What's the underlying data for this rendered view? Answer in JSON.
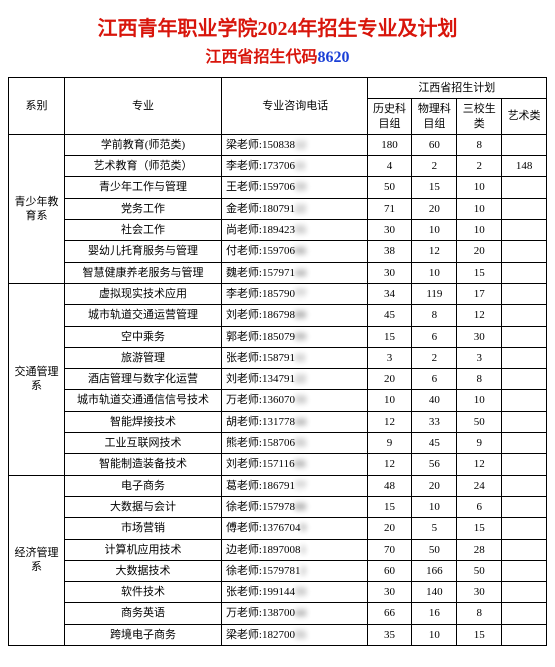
{
  "title": {
    "text": "江西青年职业学院2024年招生专业及计划",
    "color": "#d8150b",
    "fontsize": "20px"
  },
  "subtitle": {
    "prefix": "江西省招生代码",
    "code": "8620",
    "prefix_color": "#d8150b",
    "code_color": "#1a3fd6",
    "fontsize": "16px"
  },
  "header": {
    "dept": "系别",
    "major": "专业",
    "phone": "专业咨询电话",
    "plan_group": "江西省招生计划",
    "hist": "历史科目组",
    "phys": "物理科目组",
    "sanx": "三校生类",
    "art": "艺术类"
  },
  "departments": [
    {
      "name": "青少年教育系",
      "rows": [
        {
          "major": "学前教育(师范类)",
          "teacher": "梁老师:",
          "ph_a": "150838",
          "ph_b": "12",
          "hist": "180",
          "phys": "60",
          "sanx": "8",
          "art": ""
        },
        {
          "major": "艺术教育（师范类）",
          "teacher": "李老师:",
          "ph_a": "173706",
          "ph_b": "11",
          "hist": "4",
          "phys": "2",
          "sanx": "2",
          "art": "148"
        },
        {
          "major": "青少年工作与管理",
          "teacher": "王老师:",
          "ph_a": "159706",
          "ph_b": "33",
          "hist": "50",
          "phys": "15",
          "sanx": "10",
          "art": ""
        },
        {
          "major": "党务工作",
          "teacher": "金老师:",
          "ph_a": "180791",
          "ph_b": "22",
          "hist": "71",
          "phys": "20",
          "sanx": "10",
          "art": ""
        },
        {
          "major": "社会工作",
          "teacher": "尚老师:",
          "ph_a": "189423",
          "ph_b": "55",
          "hist": "30",
          "phys": "10",
          "sanx": "10",
          "art": ""
        },
        {
          "major": "婴幼儿托育服务与管理",
          "teacher": "付老师:",
          "ph_a": "159706",
          "ph_b": "66",
          "hist": "38",
          "phys": "12",
          "sanx": "20",
          "art": ""
        },
        {
          "major": "智慧健康养老服务与管理",
          "teacher": "魏老师:",
          "ph_a": "157971",
          "ph_b": "44",
          "hist": "30",
          "phys": "10",
          "sanx": "15",
          "art": ""
        }
      ]
    },
    {
      "name": "交通管理系",
      "rows": [
        {
          "major": "虚拟现实技术应用",
          "teacher": "李老师:",
          "ph_a": "185790",
          "ph_b": "77",
          "hist": "34",
          "phys": "119",
          "sanx": "17",
          "art": ""
        },
        {
          "major": "城市轨道交通运营管理",
          "teacher": "刘老师:",
          "ph_a": "186798",
          "ph_b": "88",
          "hist": "45",
          "phys": "8",
          "sanx": "12",
          "art": ""
        },
        {
          "major": "空中乘务",
          "teacher": "郭老师:",
          "ph_a": "185079",
          "ph_b": "99",
          "hist": "15",
          "phys": "6",
          "sanx": "30",
          "art": ""
        },
        {
          "major": "旅游管理",
          "teacher": "张老师:",
          "ph_a": "158791",
          "ph_b": "11",
          "hist": "3",
          "phys": "2",
          "sanx": "3",
          "art": ""
        },
        {
          "major": "酒店管理与数字化运营",
          "teacher": "刘老师:",
          "ph_a": "134791",
          "ph_b": "22",
          "hist": "20",
          "phys": "6",
          "sanx": "8",
          "art": ""
        },
        {
          "major": "城市轨道交通通信信号技术",
          "teacher": "万老师:",
          "ph_a": "136070",
          "ph_b": "33",
          "hist": "10",
          "phys": "40",
          "sanx": "10",
          "art": ""
        },
        {
          "major": "智能焊接技术",
          "teacher": "胡老师:",
          "ph_a": "131778",
          "ph_b": "44",
          "hist": "12",
          "phys": "33",
          "sanx": "50",
          "art": ""
        },
        {
          "major": "工业互联网技术",
          "teacher": "熊老师:",
          "ph_a": "158706",
          "ph_b": "55",
          "hist": "9",
          "phys": "45",
          "sanx": "9",
          "art": ""
        },
        {
          "major": "智能制造装备技术",
          "teacher": "刘老师:",
          "ph_a": "157116",
          "ph_b": "66",
          "hist": "12",
          "phys": "56",
          "sanx": "12",
          "art": ""
        }
      ]
    },
    {
      "name": "经济管理系",
      "rows": [
        {
          "major": "电子商务",
          "teacher": "葛老师:",
          "ph_a": "186791",
          "ph_b": "77",
          "hist": "48",
          "phys": "20",
          "sanx": "24",
          "art": ""
        },
        {
          "major": "大数据与会计",
          "teacher": "徐老师:",
          "ph_a": "157978",
          "ph_b": "88",
          "hist": "15",
          "phys": "10",
          "sanx": "6",
          "art": ""
        },
        {
          "major": "市场营销",
          "teacher": "傅老师:",
          "ph_a": "1376704",
          "ph_b": "9",
          "hist": "20",
          "phys": "5",
          "sanx": "15",
          "art": ""
        },
        {
          "major": "计算机应用技术",
          "teacher": "边老师:",
          "ph_a": "1897008",
          "ph_b": "1",
          "hist": "70",
          "phys": "50",
          "sanx": "28",
          "art": ""
        },
        {
          "major": "大数据技术",
          "teacher": "徐老师:",
          "ph_a": "1579781",
          "ph_b": "2",
          "hist": "60",
          "phys": "166",
          "sanx": "50",
          "art": ""
        },
        {
          "major": "软件技术",
          "teacher": "张老师:",
          "ph_a": "199144",
          "ph_b": "33",
          "hist": "30",
          "phys": "140",
          "sanx": "30",
          "art": ""
        },
        {
          "major": "商务英语",
          "teacher": "万老师:",
          "ph_a": "138700",
          "ph_b": "44",
          "hist": "66",
          "phys": "16",
          "sanx": "8",
          "art": ""
        },
        {
          "major": "跨境电子商务",
          "teacher": "梁老师:",
          "ph_a": "182700",
          "ph_b": "55",
          "hist": "35",
          "phys": "10",
          "sanx": "15",
          "art": ""
        }
      ]
    }
  ]
}
